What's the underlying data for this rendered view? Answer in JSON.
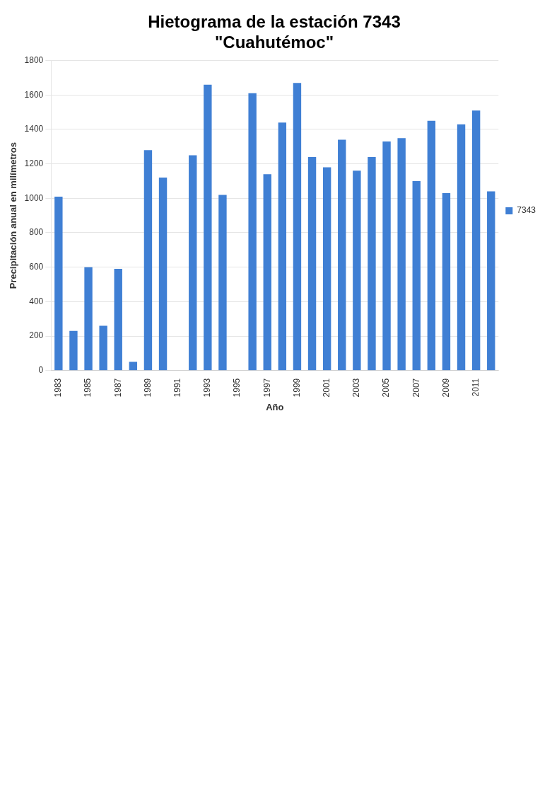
{
  "chart_data": {
    "type": "bar",
    "title": "Hietograma de la estación 7343\n\"Cuahutémoc\"",
    "xlabel": "Año",
    "ylabel": "Precipitación anual en milímetros",
    "categories": [
      "1983",
      null,
      "1985",
      null,
      "1987",
      null,
      "1989",
      null,
      "1991",
      null,
      "1993",
      null,
      "1995",
      null,
      "1997",
      null,
      "1999",
      null,
      "2001",
      null,
      "2003",
      null,
      "2005",
      null,
      "2007",
      null,
      "2009",
      null,
      "2011",
      null
    ],
    "series": [
      {
        "name": "7343",
        "color": "#3f7fd4",
        "values": [
          1010,
          230,
          600,
          260,
          590,
          50,
          1280,
          1120,
          null,
          1250,
          1660,
          1020,
          null,
          1610,
          1140,
          1440,
          1670,
          1240,
          1180,
          1340,
          1160,
          1240,
          1330,
          1350,
          1100,
          1450,
          1030,
          1430,
          1510,
          1040
        ]
      }
    ],
    "ylim": [
      0,
      1800
    ],
    "yticks": [
      0,
      200,
      400,
      600,
      800,
      1000,
      1200,
      1400,
      1600,
      1800
    ],
    "grid": "y",
    "legend": "right"
  }
}
